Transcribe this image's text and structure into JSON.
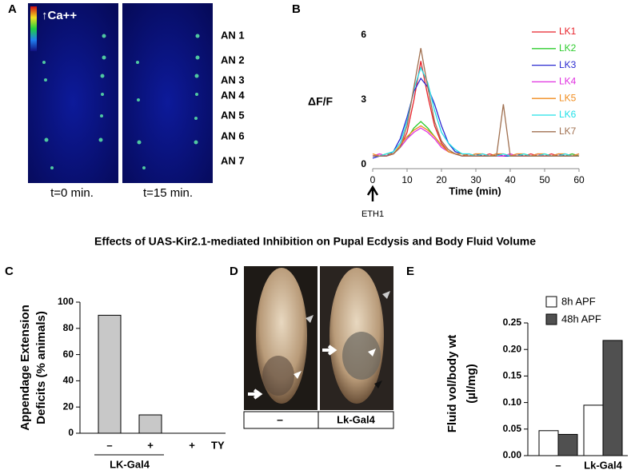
{
  "panel_labels": [
    "A",
    "B",
    "C",
    "D",
    "E"
  ],
  "figure_title": "Effects of UAS-Kir2.1-mediated Inhibition on Pupal Ecdysis and Body Fluid Volume",
  "image_a": {
    "colorbar_label": "↑Ca++",
    "neuron_labels": [
      "AN 1",
      "AN 2",
      "AN 3",
      "AN 4",
      "AN 5",
      "AN 6",
      "AN 7"
    ],
    "time_labels": [
      "t=0 min.",
      "t=15 min."
    ]
  },
  "image_d": {
    "labels": [
      "–",
      "Lk-Gal4"
    ]
  },
  "chart_data": [
    {
      "type": "line",
      "y_label": "ΔF/F",
      "x_label": "Time (min)",
      "annotation": "ETH1",
      "x": [
        0,
        2,
        4,
        6,
        8,
        10,
        12,
        14,
        16,
        18,
        20,
        22,
        24,
        26,
        28,
        30,
        32,
        34,
        36,
        38,
        40,
        42,
        44,
        46,
        48,
        50,
        52,
        54,
        56,
        58,
        60
      ],
      "xlim": [
        0,
        60
      ],
      "xticks": [
        0,
        10,
        20,
        30,
        40,
        50,
        60
      ],
      "ylim": [
        0,
        6
      ],
      "yticks": [
        0,
        3,
        6
      ],
      "series": [
        {
          "name": "LK1",
          "color": "#e8222a",
          "values": [
            0.4,
            0.5,
            0.4,
            0.5,
            0.8,
            1.5,
            3.0,
            4.8,
            3.2,
            1.8,
            1.0,
            0.6,
            0.5,
            0.4,
            0.5,
            0.4,
            0.4,
            0.5,
            0.4,
            0.4,
            0.5,
            0.4,
            0.4,
            0.5,
            0.4,
            0.4,
            0.5,
            0.4,
            0.4,
            0.5,
            0.4
          ]
        },
        {
          "name": "LK2",
          "color": "#2ecc2e",
          "values": [
            0.4,
            0.4,
            0.5,
            0.5,
            0.8,
            1.2,
            1.7,
            2.0,
            1.7,
            1.3,
            0.9,
            0.6,
            0.5,
            0.4,
            0.4,
            0.5,
            0.4,
            0.4,
            0.5,
            0.4,
            0.4,
            0.4,
            0.5,
            0.4,
            0.4,
            0.5,
            0.4,
            0.4,
            0.4,
            0.5,
            0.4
          ]
        },
        {
          "name": "LK3",
          "color": "#2a2ad0",
          "values": [
            0.3,
            0.4,
            0.4,
            0.6,
            1.2,
            2.2,
            3.4,
            4.0,
            3.6,
            2.8,
            1.8,
            1.0,
            0.6,
            0.5,
            0.4,
            0.5,
            0.4,
            0.4,
            0.5,
            0.4,
            0.4,
            0.5,
            0.4,
            0.4,
            0.5,
            0.4,
            0.4,
            0.5,
            0.4,
            0.4,
            0.5
          ]
        },
        {
          "name": "LK4",
          "color": "#e030e0",
          "values": [
            0.4,
            0.5,
            0.4,
            0.5,
            0.8,
            1.2,
            1.5,
            1.7,
            1.5,
            1.2,
            0.8,
            0.6,
            0.5,
            0.4,
            0.4,
            0.4,
            0.5,
            0.4,
            0.4,
            0.4,
            0.5,
            0.4,
            0.4,
            0.4,
            0.5,
            0.4,
            0.4,
            0.4,
            0.5,
            0.4,
            0.4
          ]
        },
        {
          "name": "LK5",
          "color": "#f08c1e",
          "values": [
            0.5,
            0.4,
            0.5,
            0.5,
            0.9,
            1.3,
            1.6,
            1.8,
            1.6,
            1.3,
            0.9,
            0.6,
            0.5,
            0.5,
            0.4,
            0.5,
            0.5,
            0.4,
            0.5,
            0.5,
            0.4,
            0.5,
            0.5,
            0.4,
            0.5,
            0.5,
            0.4,
            0.5,
            0.5,
            0.4,
            0.5
          ]
        },
        {
          "name": "LK6",
          "color": "#20e0e8",
          "values": [
            0.4,
            0.4,
            0.5,
            0.6,
            1.0,
            2.0,
            3.5,
            4.5,
            3.8,
            2.5,
            1.5,
            1.0,
            0.7,
            0.5,
            0.5,
            0.4,
            0.5,
            0.4,
            0.4,
            0.5,
            0.4,
            0.4,
            0.5,
            0.4,
            0.4,
            0.5,
            0.4,
            0.4,
            0.5,
            0.4,
            0.4
          ]
        },
        {
          "name": "LK7",
          "color": "#a07050",
          "values": [
            0.4,
            0.4,
            0.4,
            0.5,
            0.8,
            1.8,
            3.6,
            5.4,
            3.6,
            2.0,
            1.1,
            0.7,
            0.5,
            0.4,
            0.4,
            0.4,
            0.4,
            0.4,
            0.4,
            2.8,
            0.4,
            0.4,
            0.4,
            0.4,
            0.4,
            0.4,
            0.4,
            0.4,
            0.4,
            0.4,
            0.4
          ]
        }
      ]
    },
    {
      "type": "bar",
      "y_label": [
        "Appendage Extension",
        "Deficits (% animals)"
      ],
      "categories": [
        "–",
        "+",
        "+"
      ],
      "values": [
        90,
        14,
        0
      ],
      "color": "#c8c8c8",
      "row_label": "TY",
      "group_label": "LK-Gal4",
      "ylim": [
        0,
        100
      ],
      "yticks": [
        0,
        20,
        40,
        60,
        80,
        100
      ]
    },
    {
      "type": "grouped_bar",
      "y_label": [
        "Fluid vol/body wt",
        "(µl/mg)"
      ],
      "categories": [
        "–",
        "Lk-Gal4"
      ],
      "series": [
        {
          "name": "8h APF",
          "color": "#ffffff",
          "values": [
            0.047,
            0.095
          ]
        },
        {
          "name": "48h APF",
          "color": "#505050",
          "values": [
            0.04,
            0.217
          ]
        }
      ],
      "ylim": [
        0,
        0.25
      ],
      "yticks": [
        {
          "value": 0,
          "label": "0.00"
        },
        0.05,
        {
          "value": 0.1,
          "label": "0.10"
        },
        0.15,
        {
          "value": 0.2,
          "label": "0.20"
        },
        0.25
      ]
    }
  ]
}
